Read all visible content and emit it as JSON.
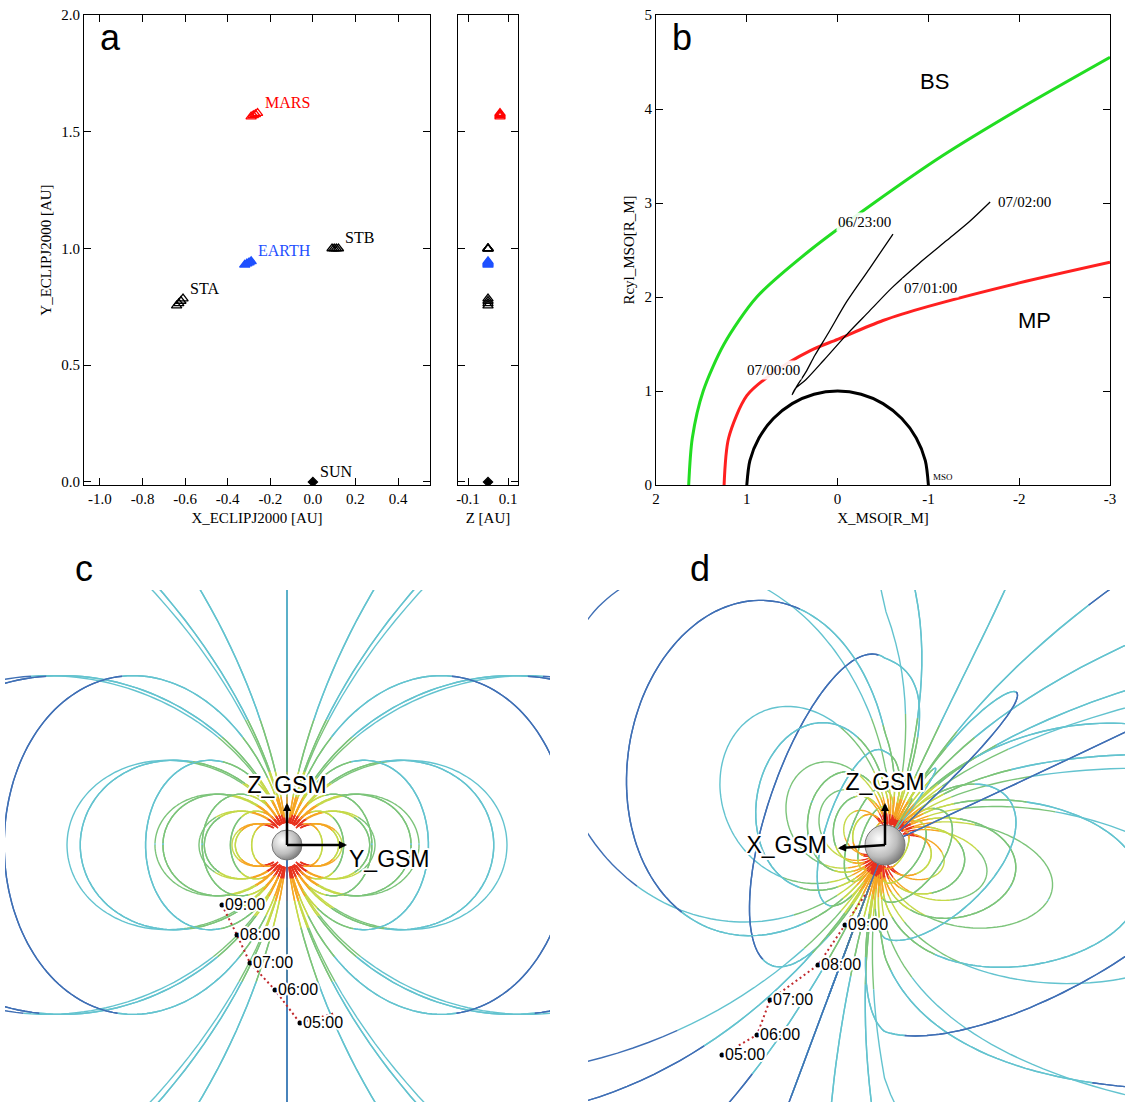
{
  "chart_data": [
    {
      "type": "scatter",
      "label": "a",
      "xlabel": "X_ECLIPJ2000 [AU]",
      "ylabel": "Y_ECLIPJ2000 [AU]",
      "zlabel": "Z [AU]",
      "xlim": [
        -1.075,
        0.55
      ],
      "ylim": [
        -0.013,
        2.0
      ],
      "zlim": [
        -0.15,
        0.15
      ],
      "xticks": [
        {
          "value": -1.0,
          "label": "-1.0"
        },
        -0.8,
        -0.6,
        -0.4,
        -0.2,
        {
          "value": 0,
          "label": "0.0"
        },
        0.2,
        0.4
      ],
      "yticks": [
        {
          "value": 0,
          "label": "0.0"
        },
        0.5,
        {
          "value": 1,
          "label": "1.0"
        },
        1.5,
        {
          "value": 2,
          "label": "2.0"
        }
      ],
      "zticks": [
        -0.1,
        0.1
      ],
      "series": [
        {
          "name": "MARS",
          "color": "#ff0000",
          "marker": "triangle-up-open",
          "x": [
            -0.29,
            -0.28,
            -0.27,
            -0.26
          ],
          "y": [
            1.565,
            1.57,
            1.575,
            1.58
          ],
          "z": [
            0.06,
            0.06,
            0.06,
            0.06
          ]
        },
        {
          "name": "EARTH",
          "color": "#1e50ff",
          "marker": "triangle-up",
          "x": [
            -0.32,
            -0.31,
            -0.3,
            -0.29
          ],
          "y": [
            0.93,
            0.935,
            0.94,
            0.945
          ],
          "z": [
            0,
            0,
            0,
            0
          ]
        },
        {
          "name": "STA",
          "color": "#000000",
          "marker": "triangle-up-open",
          "x": [
            -0.64,
            -0.63,
            -0.62,
            -0.61
          ],
          "y": [
            0.755,
            0.765,
            0.775,
            0.785
          ],
          "z": [
            0,
            0,
            0,
            0
          ]
        },
        {
          "name": "STB",
          "color": "#000000",
          "marker": "triangle-up-open",
          "x": [
            0.09,
            0.1,
            0.11,
            0.12
          ],
          "y": [
            1.0,
            1.0,
            1.0,
            1.0
          ],
          "z": [
            0,
            0,
            0,
            0
          ]
        },
        {
          "name": "SUN",
          "color": "#000000",
          "marker": "diamond",
          "x": [
            0
          ],
          "y": [
            0
          ],
          "z": [
            0
          ]
        }
      ]
    },
    {
      "type": "line",
      "label": "b",
      "xlabel": "X_MSO[R_M]",
      "ylabel": "Rcyl_MSO[R_M]",
      "xlim": [
        2,
        -3
      ],
      "ylim": [
        0,
        5
      ],
      "xticks": [
        2,
        1,
        0,
        -1,
        -2,
        -3
      ],
      "yticks": [
        0,
        1,
        2,
        3,
        4,
        5
      ],
      "series": [
        {
          "name": "BS",
          "color": "#22dd22",
          "line_style": "thick",
          "x": [
            1.64,
            1.6,
            1.48,
            1.25,
            0.89,
            0.3,
            -0.4,
            -1.15,
            -2.0,
            -3.0
          ],
          "y": [
            0,
            0.5,
            1,
            1.5,
            2,
            2.5,
            3,
            3.5,
            4,
            4.55
          ]
        },
        {
          "name": "MP",
          "color": "#ff2020",
          "line_style": "thick",
          "x": [
            1.25,
            1.2,
            1.0,
            0.7,
            0.3,
            0,
            -0.5,
            -1,
            -2,
            -3
          ],
          "y": [
            0,
            0.5,
            0.95,
            1.2,
            1.43,
            1.55,
            1.75,
            1.9,
            2.15,
            2.37
          ]
        },
        {
          "color": "#000000",
          "line_style": "thick",
          "x": [
            1,
            0.966,
            0.866,
            0.707,
            0.5,
            0.259,
            0,
            -0.259,
            -0.5,
            -0.707,
            -0.866,
            -0.966,
            -1
          ],
          "y": [
            0,
            0.259,
            0.5,
            0.707,
            0.866,
            0.966,
            1,
            0.966,
            0.866,
            0.707,
            0.5,
            0.259,
            0
          ]
        },
        {
          "color": "#000000",
          "line_style": "thin",
          "x": [
            -0.61,
            -0.35,
            -0.1,
            0.1,
            0.25,
            0.35,
            0.45,
            0.5,
            0.47,
            0.35,
            0.15,
            -0.1,
            -0.35,
            -0.6,
            -0.9,
            -1.2,
            -1.45,
            -1.68
          ],
          "y": [
            2.67,
            2.3,
            1.95,
            1.62,
            1.38,
            1.2,
            1.05,
            0.96,
            1.02,
            1.12,
            1.33,
            1.6,
            1.85,
            2.1,
            2.36,
            2.6,
            2.8,
            3.01
          ]
        }
      ],
      "annotations": [
        {
          "text": "06/23:00",
          "x": -0.61,
          "y": 2.67
        },
        {
          "text": "07/00:00",
          "x": 0.35,
          "y": 1.2
        },
        {
          "text": "07/01:00",
          "x": -0.6,
          "y": 2.1
        },
        {
          "text": "07/02:00",
          "x": -1.68,
          "y": 3.01
        },
        {
          "text": "MSO",
          "x": -1,
          "y": 0
        }
      ]
    }
  ],
  "diagrams": [
    {
      "label": "c",
      "axes": [
        "Z_GSM",
        "Y_GSM"
      ],
      "times": [
        "09:00",
        "08:00",
        "07:00",
        "06:00",
        "05:00"
      ]
    },
    {
      "label": "d",
      "axes": [
        "Z_GSM",
        "X_GSM"
      ],
      "times": [
        "09:00",
        "08:00",
        "07:00",
        "06:00",
        "05:00"
      ]
    }
  ]
}
